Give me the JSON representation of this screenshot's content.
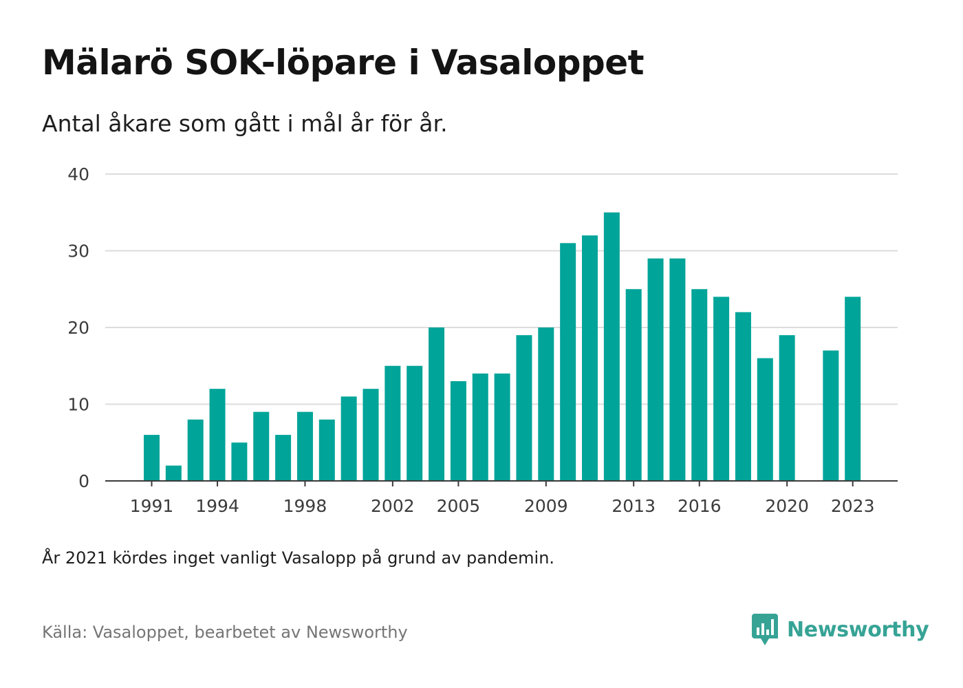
{
  "header": {
    "title": "Mälarö SOK-löpare i Vasaloppet",
    "subtitle": "Antal åkare som gått i mål år för år."
  },
  "footer": {
    "note": "År 2021 kördes inget vanligt Vasalopp på grund av pandemin.",
    "source": "Källa: Vasaloppet, bearbetet av Newsworthy",
    "brand_name": "Newsworthy",
    "brand_icon": "newsworthy-logo-icon"
  },
  "colors": {
    "bar": "#00a499",
    "grid": "#dcdcdc",
    "axis": "#3a3a3a",
    "brand": "#36a395"
  },
  "chart_data": {
    "type": "bar",
    "title": "Mälarö SOK-löpare i Vasaloppet",
    "subtitle": "Antal åkare som gått i mål år för år.",
    "xlabel": "",
    "ylabel": "",
    "ylim": [
      0,
      40
    ],
    "yticks": [
      0,
      10,
      20,
      30,
      40
    ],
    "xticks": [
      1991,
      1994,
      1998,
      2002,
      2005,
      2009,
      2013,
      2016,
      2020,
      2023
    ],
    "grid": "horizontal",
    "legend": "none",
    "categories": [
      1991,
      1992,
      1993,
      1994,
      1995,
      1996,
      1997,
      1998,
      1999,
      2000,
      2001,
      2002,
      2003,
      2004,
      2005,
      2006,
      2007,
      2008,
      2009,
      2010,
      2011,
      2012,
      2013,
      2014,
      2015,
      2016,
      2017,
      2018,
      2019,
      2020,
      2021,
      2022,
      2023
    ],
    "values": [
      6,
      2,
      8,
      12,
      5,
      9,
      6,
      9,
      8,
      11,
      12,
      15,
      15,
      20,
      13,
      14,
      14,
      19,
      20,
      31,
      32,
      35,
      25,
      29,
      29,
      25,
      24,
      22,
      16,
      19,
      null,
      17,
      24
    ]
  }
}
